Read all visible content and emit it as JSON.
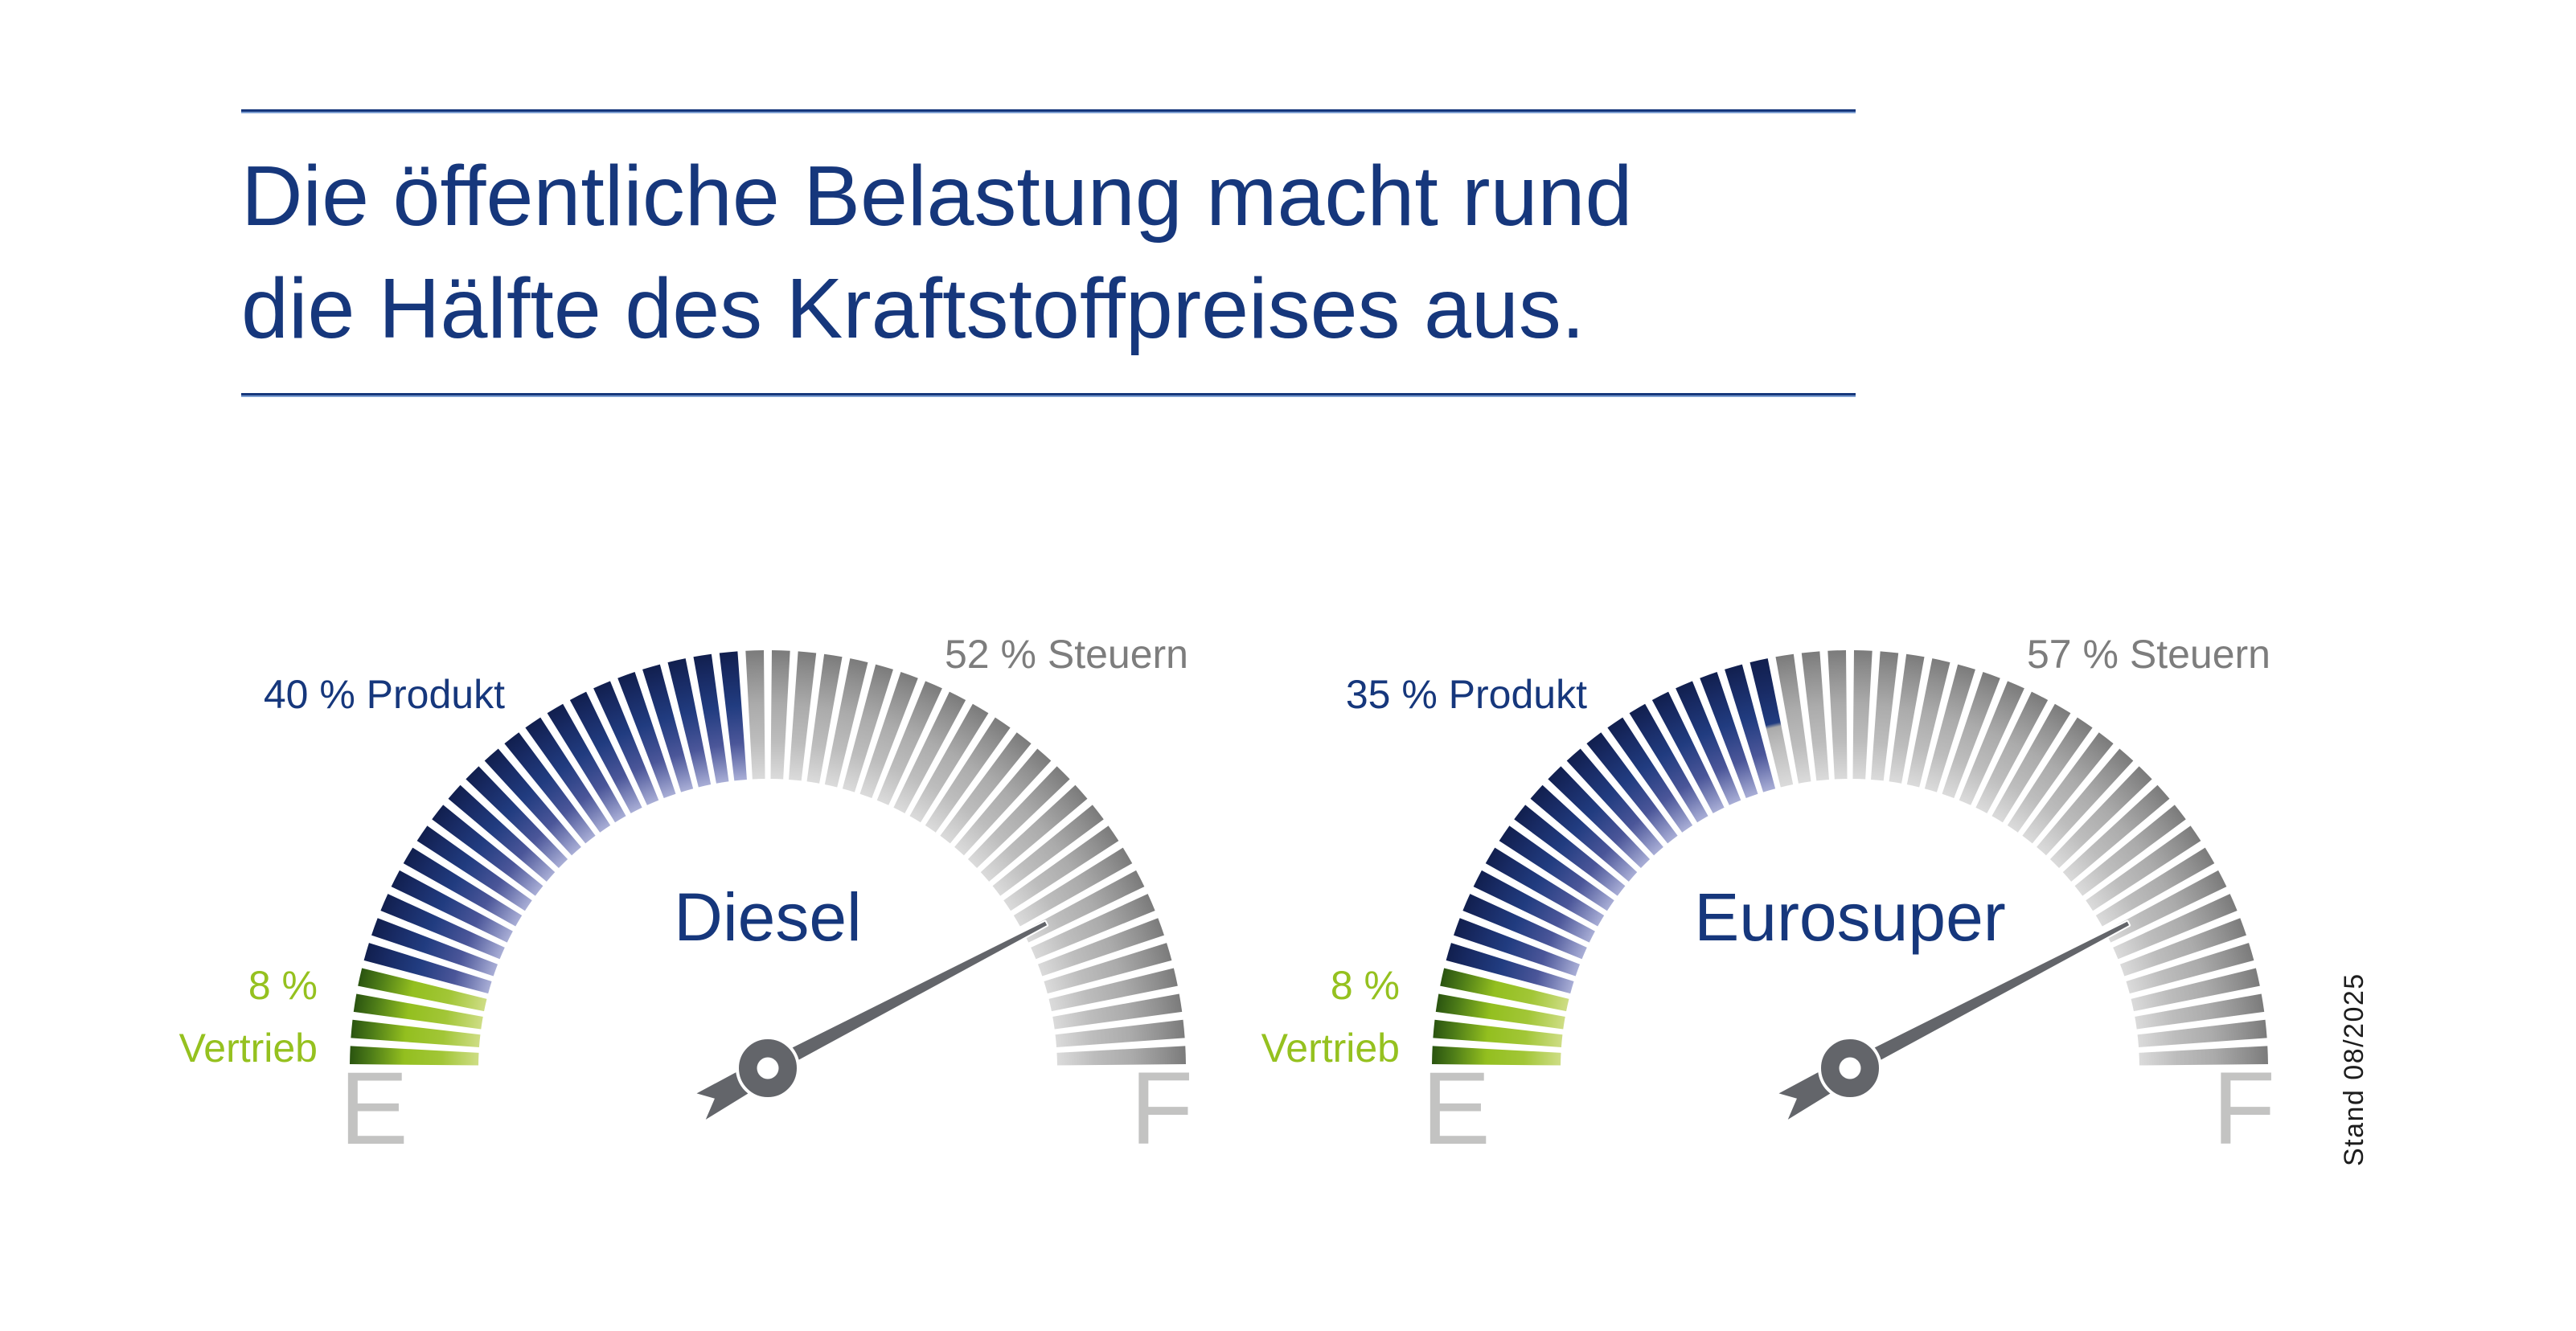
{
  "header": {
    "title_line1": "Die öffentliche Belastung macht rund",
    "title_line2": "die Hälfte des Kraftstoffpreises aus."
  },
  "footnote": {
    "text": "Stand 08/2025"
  },
  "palette": {
    "navy": "#16377c",
    "green": "#95c11f",
    "label_gray": "#7d7d7d",
    "ef_gray": "#c3c3c2",
    "needle_gray": "#63656a",
    "rule_underline": "#7d9fd2",
    "tick_blue": "#213c80",
    "tick_gray": "#ababab"
  },
  "chart_data": [
    {
      "type": "gauge",
      "title": "Diesel",
      "unit": "%",
      "arc_degrees": 180,
      "ticks_total": 50,
      "tick_value_pct": 2,
      "empty_label": "E",
      "full_label": "F",
      "needle_angle_above_horizontal_deg": 27.5,
      "segments": [
        {
          "name": "Vertrieb",
          "value_pct": 8,
          "color_key": "green",
          "label_value": "8 %",
          "label_name": "Vertrieb"
        },
        {
          "name": "Produkt",
          "value_pct": 40,
          "color_key": "blue",
          "label": "40 % Produkt"
        },
        {
          "name": "Steuern",
          "value_pct": 52,
          "color_key": "gray",
          "label": "52 % Steuern"
        }
      ]
    },
    {
      "type": "gauge",
      "title": "Eurosuper",
      "unit": "%",
      "arc_degrees": 180,
      "ticks_total": 50,
      "tick_value_pct": 2,
      "empty_label": "E",
      "full_label": "F",
      "needle_angle_above_horizontal_deg": 27.5,
      "segments": [
        {
          "name": "Vertrieb",
          "value_pct": 8,
          "color_key": "green",
          "label_value": "8 %",
          "label_name": "Vertrieb"
        },
        {
          "name": "Produkt",
          "value_pct": 35,
          "color_key": "blue",
          "label": "35 % Produkt"
        },
        {
          "name": "Steuern",
          "value_pct": 57,
          "color_key": "gray",
          "label": "57 % Steuern"
        }
      ]
    }
  ]
}
